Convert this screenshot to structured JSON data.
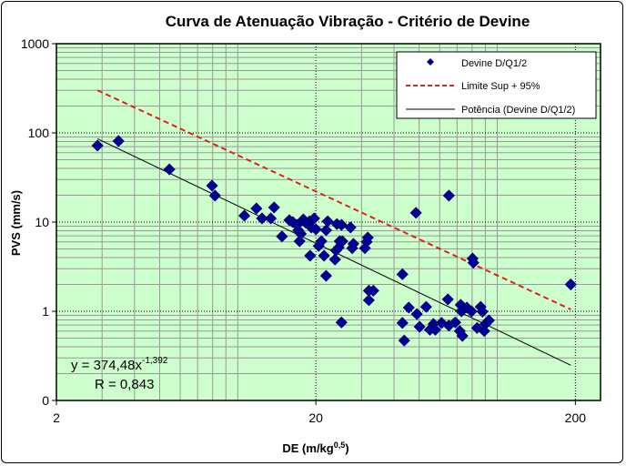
{
  "chart_data": {
    "type": "scatter",
    "title": "Curva de Atenuação Vibração - Critério de Devine",
    "xlabel": "DE (m/kg",
    "xlabel_sup": "0,5",
    "xlabel_end": ")",
    "ylabel": "PVS (mm/s)",
    "x_scale": "log",
    "y_scale": "log",
    "xlim": [
      2,
      250
    ],
    "ylim": [
      0.1,
      1000
    ],
    "x_ticks": [
      {
        "value": 2,
        "label": "2"
      },
      {
        "value": 20,
        "label": "20"
      },
      {
        "value": 200,
        "label": "200"
      }
    ],
    "y_ticks": [
      {
        "value": 1000,
        "label": "1000"
      },
      {
        "value": 100,
        "label": "100"
      },
      {
        "value": 10,
        "label": "10"
      },
      {
        "value": 1,
        "label": "1"
      },
      {
        "value": 0.1,
        "label": "0"
      }
    ],
    "grid": true,
    "plot_background": "#ccffcc",
    "legend_position": "top-right",
    "legend": [
      {
        "label": "Devine D/Q1/2",
        "marker": "diamond",
        "color": "#000099"
      },
      {
        "label": "Limite Sup + 95%",
        "style": "dashed",
        "color": "#dd2222"
      },
      {
        "label": "Potência (Devine D/Q1/2)",
        "style": "solid",
        "color": "#000000"
      }
    ],
    "series": [
      {
        "name": "Devine D/Q1/2",
        "color": "#000099",
        "points": [
          [
            2.88,
            72
          ],
          [
            3.47,
            81
          ],
          [
            5.45,
            39
          ],
          [
            7.96,
            25.6
          ],
          [
            8.17,
            19.8
          ],
          [
            10.6,
            11.8
          ],
          [
            11.8,
            14.2
          ],
          [
            12.4,
            11.0
          ],
          [
            13.8,
            14.6
          ],
          [
            13.4,
            11.0
          ],
          [
            14.8,
            6.9
          ],
          [
            15.8,
            10.5
          ],
          [
            16.3,
            10
          ],
          [
            16.9,
            9.3
          ],
          [
            17.1,
            8.1
          ],
          [
            17.3,
            6.1
          ],
          [
            17.5,
            7.4
          ],
          [
            17.9,
            10.7
          ],
          [
            18.3,
            9.8
          ],
          [
            18.9,
            10.2
          ],
          [
            19.7,
            11.0
          ],
          [
            20,
            8.3
          ],
          [
            19.2,
            8.7
          ],
          [
            20.5,
            5.4
          ],
          [
            21.0,
            6.1
          ],
          [
            21.9,
            2.5
          ],
          [
            22.2,
            10.2
          ],
          [
            24.1,
            9.5
          ],
          [
            25.1,
            9.3
          ],
          [
            24.7,
            6.1
          ],
          [
            23.7,
            3.8
          ],
          [
            23.9,
            4.8
          ],
          [
            24.5,
            5.2
          ],
          [
            25.3,
            6.1
          ],
          [
            27.2,
            8.7
          ],
          [
            27.6,
            5.1
          ],
          [
            27.9,
            5.7
          ],
          [
            30.9,
            5.1
          ],
          [
            31.4,
            6.0
          ],
          [
            31.7,
            6.7
          ],
          [
            21.9,
            8.1
          ],
          [
            19.0,
            4.2
          ],
          [
            21.5,
            4.2
          ],
          [
            32.0,
            1.7
          ],
          [
            33.3,
            1.7
          ],
          [
            32.0,
            1.33
          ],
          [
            25.1,
            0.75
          ],
          [
            43.1,
            2.6
          ],
          [
            43.1,
            0.74
          ],
          [
            43.8,
            0.47
          ],
          [
            45.6,
            1.1
          ],
          [
            49.0,
            0.93
          ],
          [
            50.2,
            0.67
          ],
          [
            53.2,
            1.12
          ],
          [
            48.6,
            12.7
          ],
          [
            65.1,
            19.8
          ],
          [
            64.5,
            1.36
          ],
          [
            72.3,
            1.18
          ],
          [
            72.8,
            1.0
          ],
          [
            71.7,
            0.6
          ],
          [
            68.9,
            0.75
          ],
          [
            76.4,
            1.1
          ],
          [
            79.6,
            1.0
          ],
          [
            80.3,
            3.9
          ],
          [
            80.9,
            3.5
          ],
          [
            86.3,
            1.12
          ],
          [
            87.7,
            0.99
          ],
          [
            90,
            0.72
          ],
          [
            92.9,
            0.79
          ],
          [
            65.1,
            0.69
          ],
          [
            61,
            0.74
          ],
          [
            56.8,
            0.72
          ],
          [
            57.7,
            0.62
          ],
          [
            83.6,
            0.65
          ],
          [
            89.1,
            0.6
          ],
          [
            73.4,
            0.53
          ],
          [
            55,
            0.62
          ],
          [
            192,
            2.0
          ]
        ]
      },
      {
        "name": "Limite Sup + 95%",
        "color": "#dd2222",
        "points": [
          [
            2.88,
            300
          ],
          [
            192,
            1.05
          ]
        ]
      },
      {
        "name": "Potência (Devine D/Q1/2)",
        "color": "#000000",
        "coefficient": 374.48,
        "exponent": -1.392,
        "x_range": [
          2.88,
          192
        ]
      }
    ],
    "annotations": {
      "equation_prefix": "y = 374,48x",
      "equation_exponent": "-1,392",
      "r_value": "R = 0,843"
    }
  }
}
